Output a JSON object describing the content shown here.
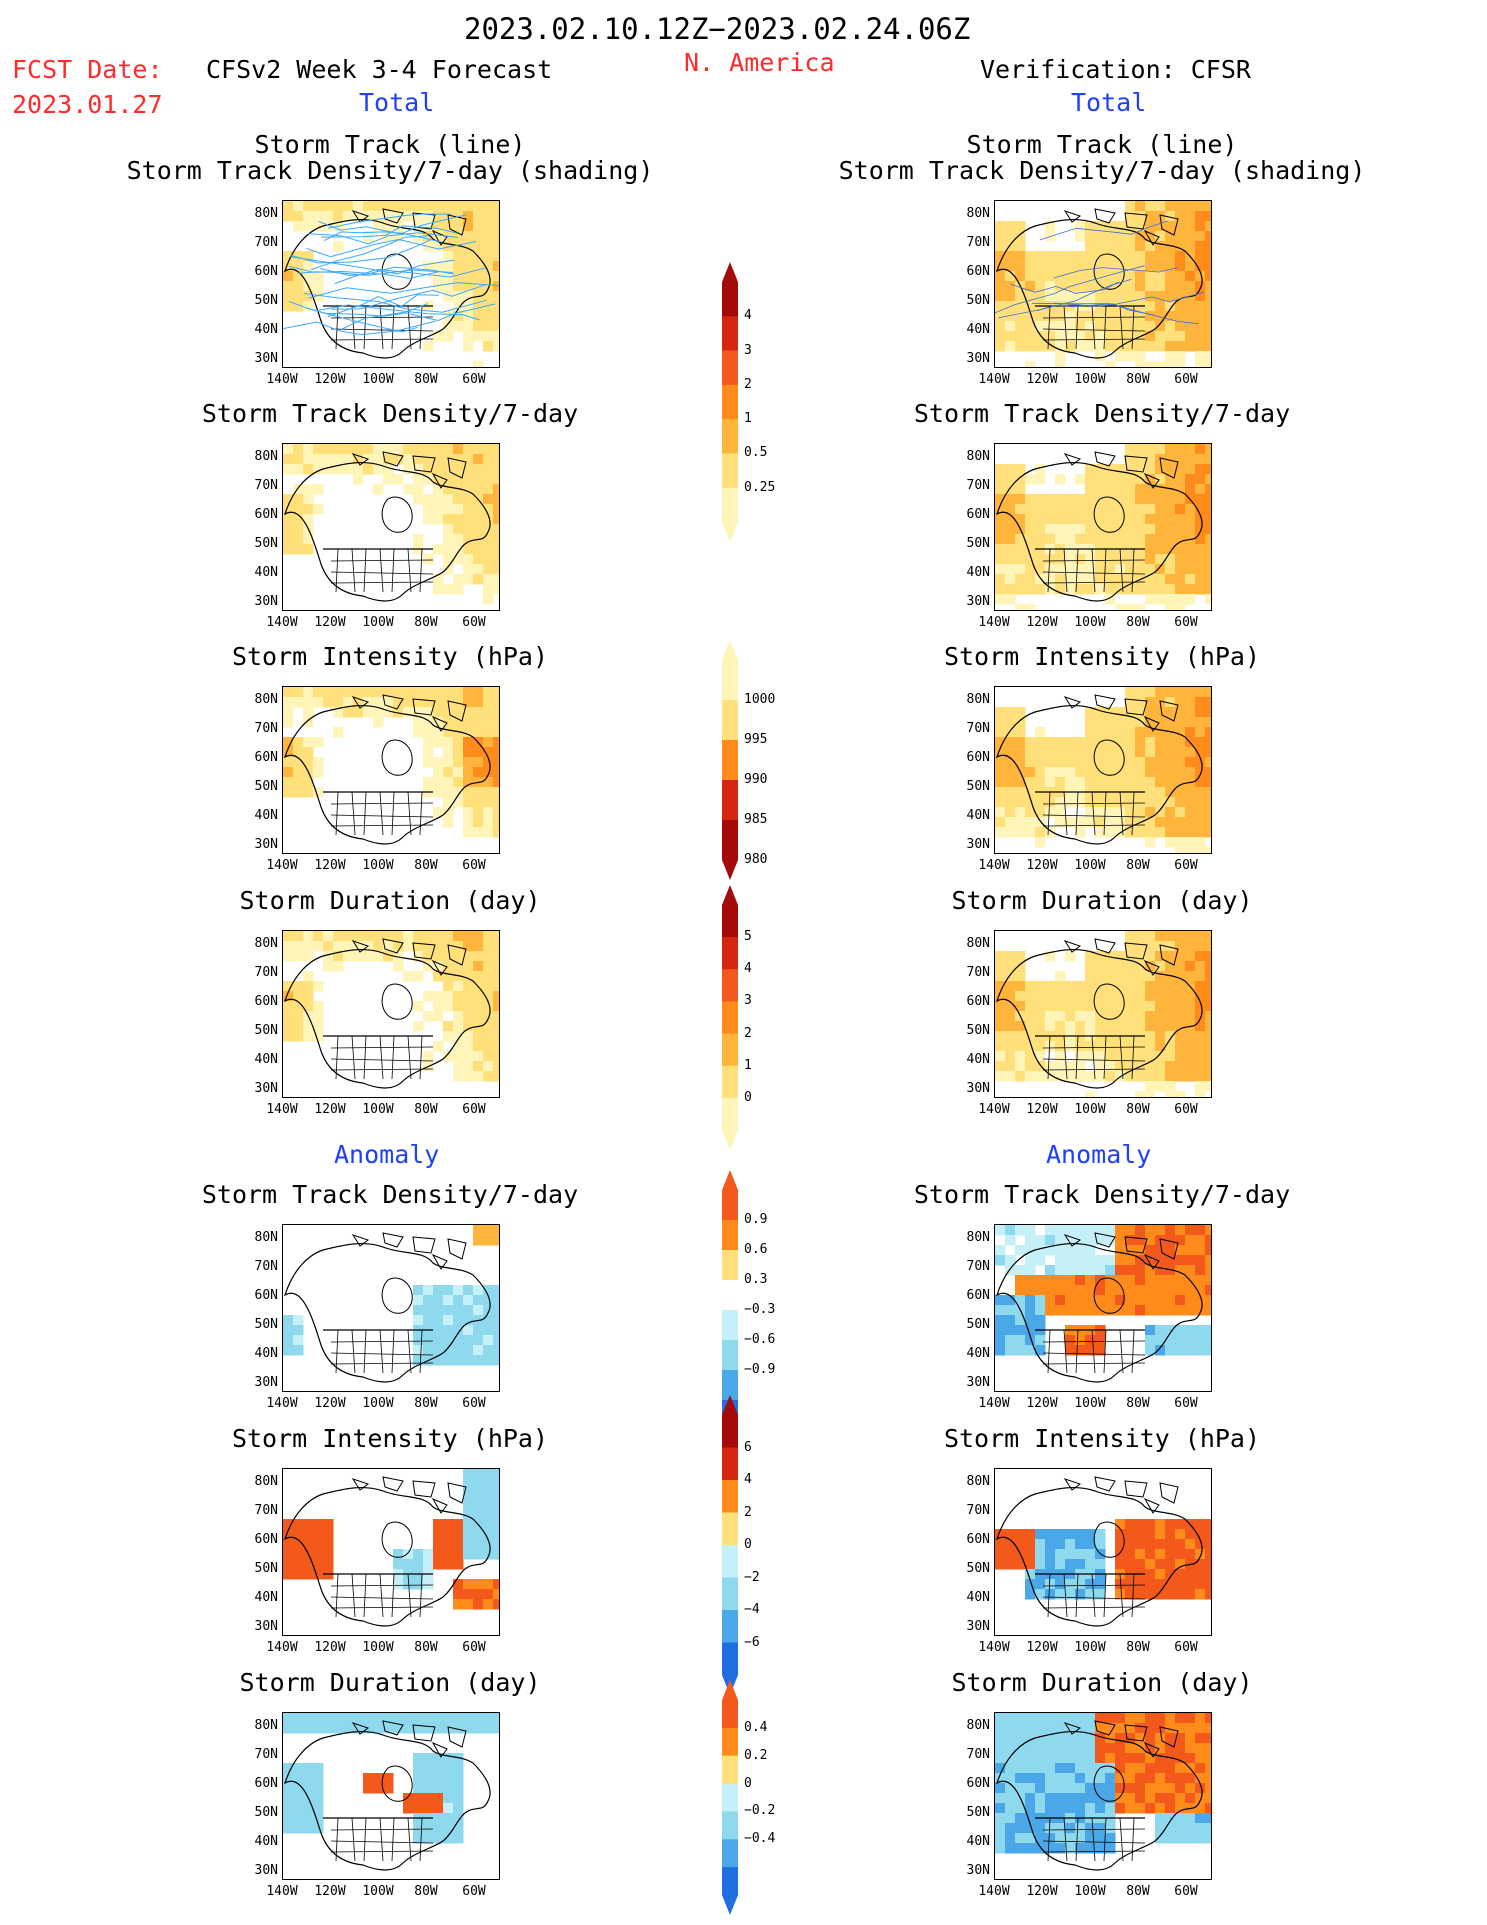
{
  "header": {
    "period": "2023.02.10.12Z−2023.02.24.06Z",
    "region": "N. America",
    "fcst_label": "FCST Date:",
    "fcst_date": "2023.01.27",
    "left_title": "CFSv2 Week 3-4 Forecast",
    "right_title": "Verification: CFSR",
    "total_label": "Total",
    "anomaly_label": "Anomaly"
  },
  "panel_titles": {
    "track_line": "Storm Track (line)",
    "track_shading": "Storm Track Density/7-day (shading)",
    "density": "Storm Track Density/7-day",
    "intensity": "Storm Intensity (hPa)",
    "duration": "Storm Duration (day)"
  },
  "axes": {
    "lat": [
      "80N",
      "70N",
      "60N",
      "50N",
      "40N",
      "30N"
    ],
    "lon": [
      "140W",
      "120W",
      "100W",
      "80W",
      "60W"
    ]
  },
  "colorbars": {
    "density_total": [
      "4",
      "3",
      "2",
      "1",
      "0.5",
      "0.25"
    ],
    "intensity_total": [
      "1000",
      "995",
      "990",
      "985",
      "980"
    ],
    "duration_total": [
      "5",
      "4",
      "3",
      "2",
      "1",
      "0"
    ],
    "density_anom": [
      "0.9",
      "0.6",
      "0.3",
      "−0.3",
      "−0.6",
      "−0.9"
    ],
    "intensity_anom": [
      "6",
      "4",
      "2",
      "0",
      "−2",
      "−4",
      "−6"
    ],
    "duration_anom": [
      "0.4",
      "0.2",
      "0",
      "−0.2",
      "−0.4"
    ]
  },
  "colors": {
    "warm": [
      "#fff5b8",
      "#ffe07a",
      "#ffb43c",
      "#ff8c1a",
      "#f2591a",
      "#d7260f",
      "#a50a0a"
    ],
    "cool": [
      "#c5f0f7",
      "#8fd9ef",
      "#4aa8e8",
      "#1f6fe0"
    ],
    "title_red": "#ff2a2a",
    "title_blue": "#1f3fff",
    "track_line": "#3aa9ff"
  }
}
